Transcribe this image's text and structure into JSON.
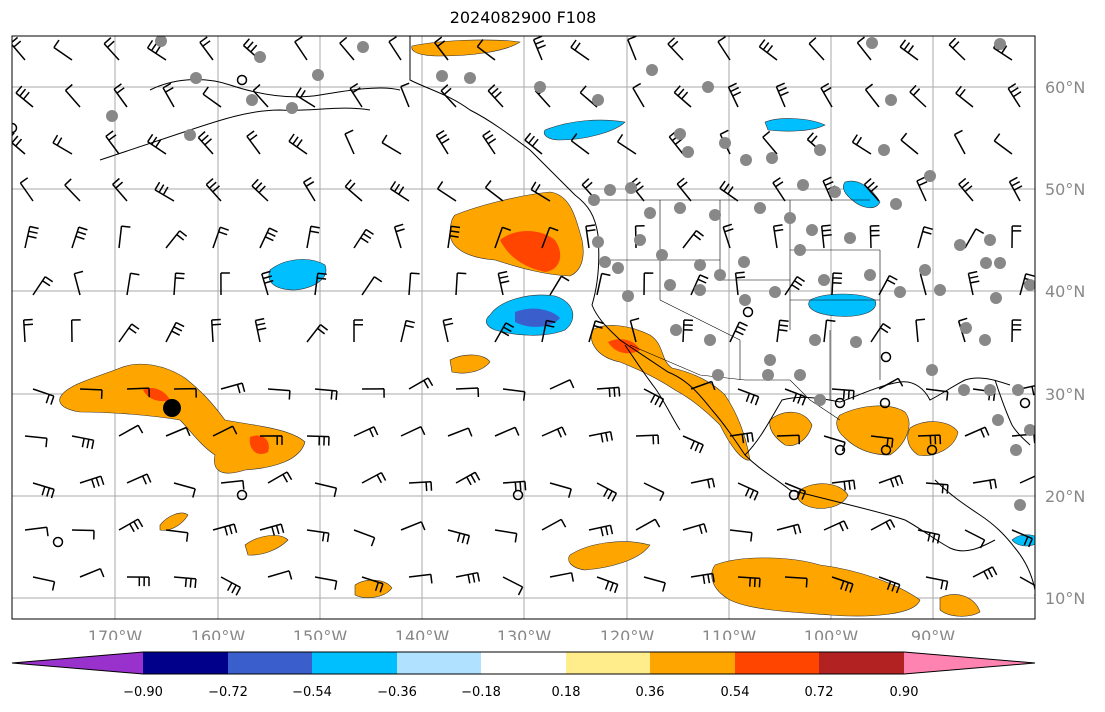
{
  "title": "2024082900 F108",
  "lat_labels": [
    "60°N",
    "50°N",
    "40°N",
    "30°N",
    "20°N",
    "10°N"
  ],
  "lon_labels": [
    "170°W",
    "160°W",
    "150°W",
    "140°W",
    "130°W",
    "120°W",
    "110°W",
    "100°W",
    "90°W"
  ],
  "colorbar": {
    "ticks": [
      "−0.90",
      "−0.72",
      "−0.54",
      "−0.36",
      "−0.18",
      "0.18",
      "0.36",
      "0.54",
      "0.72",
      "0.90"
    ],
    "colors": [
      "#9932cc",
      "#00008b",
      "#3a5fcd",
      "#00bfff",
      "#b0e2ff",
      "#ffffff",
      "#ffec8b",
      "#ffa500",
      "#ff4500",
      "#b22222",
      "#ff83b0"
    ]
  },
  "colors": {
    "grid": "#aaaaaa",
    "coast": "#000000",
    "station": "#888888",
    "barb": "#000000"
  }
}
